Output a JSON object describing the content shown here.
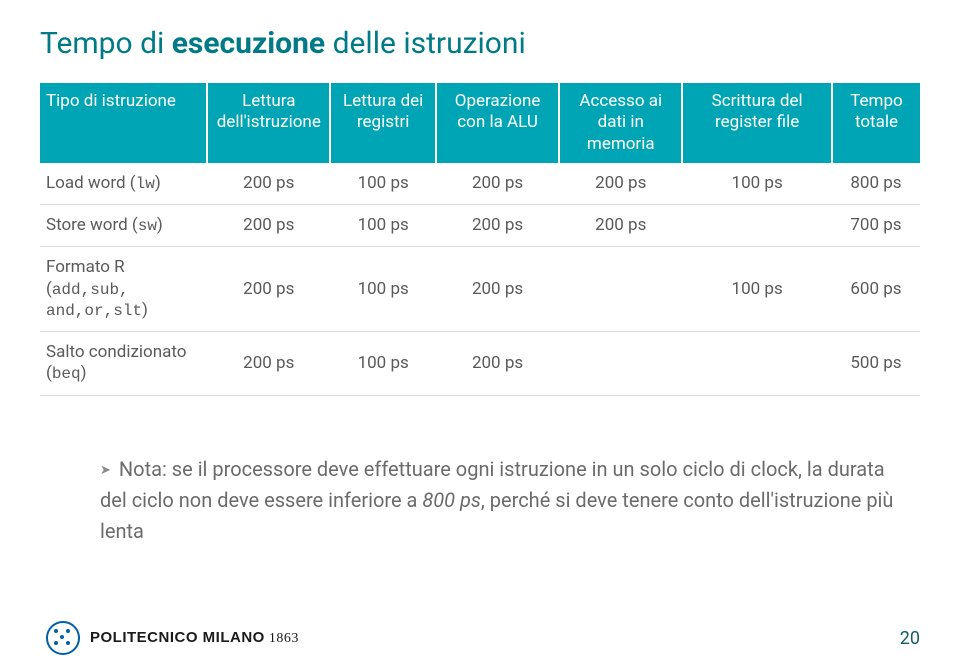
{
  "title": {
    "pre": "Tempo di ",
    "bold": "esecuzione",
    "post": " delle istruzioni",
    "color": "#007a87",
    "fontsize": 30
  },
  "table": {
    "header_bg": "#00a5b5",
    "header_color": "#ffffff",
    "row_border": "#d9d9d9",
    "cell_color": "#5a5a5a",
    "fontsize": 17,
    "columns": [
      "Tipo di istruzione",
      "Lettura dell'istruzione",
      "Lettura dei registri",
      "Operazione con la ALU",
      "Accesso ai dati in memoria",
      "Scrittura del register file",
      "Tempo totale"
    ],
    "rows": [
      {
        "label_prefix": "Load word (",
        "label_mono": "lw",
        "label_suffix": ")",
        "c1": "200 ps",
        "c2": "100 ps",
        "c3": "200 ps",
        "c4": "200 ps",
        "c5": "100 ps",
        "c6": "800 ps"
      },
      {
        "label_prefix": "Store word (",
        "label_mono": "sw",
        "label_suffix": ")",
        "c1": "200 ps",
        "c2": "100 ps",
        "c3": "200 ps",
        "c4": "200 ps",
        "c5": "",
        "c6": "700 ps"
      },
      {
        "label_prefix": "Formato R (",
        "label_mono": "add,sub, and,or,slt",
        "label_suffix": ")",
        "c1": "200 ps",
        "c2": "100 ps",
        "c3": "200 ps",
        "c4": "",
        "c5": "100 ps",
        "c6": "600 ps"
      },
      {
        "label_prefix": "Salto condizionato (",
        "label_mono": "beq",
        "label_suffix": ")",
        "c1": "200 ps",
        "c2": "100 ps",
        "c3": "200 ps",
        "c4": "",
        "c5": "",
        "c6": "500 ps"
      }
    ]
  },
  "note": {
    "text_before_italic": "Nota: se il processore deve effettuare ogni istruzione in un solo ciclo di clock, la durata del ciclo non deve essere inferiore a ",
    "italic": "800 ps",
    "text_after_italic": ", perché si deve tenere conto dell'istruzione più lenta",
    "color": "#6b6b6b",
    "fontsize": 20
  },
  "footer": {
    "logo_text": "POLITECNICO MILANO",
    "logo_year": "1863",
    "page_num": "20",
    "page_num_color": "#115e67",
    "bar_color": "#dddddd"
  }
}
